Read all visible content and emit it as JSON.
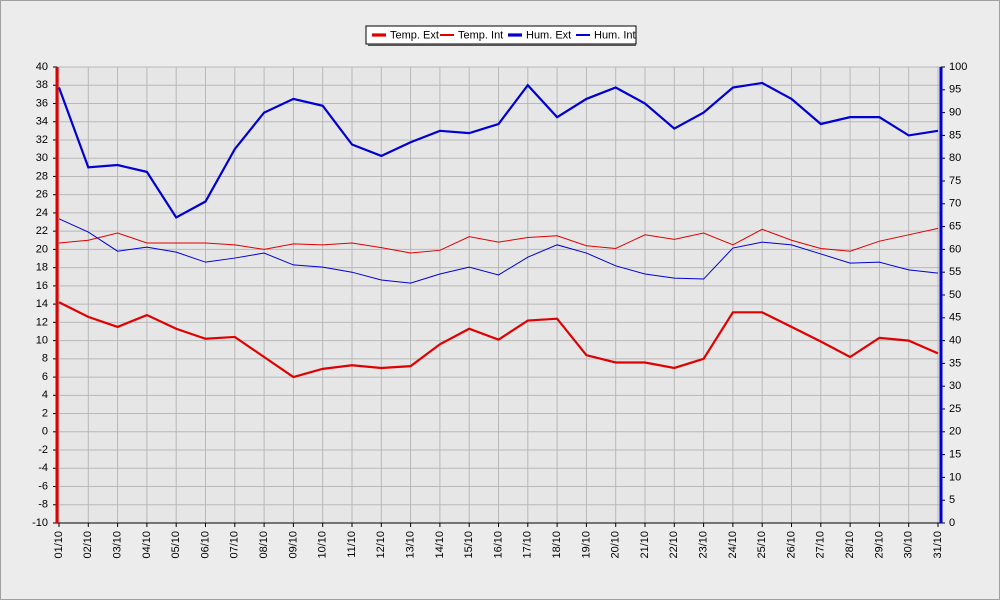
{
  "chart_data": {
    "type": "line",
    "categories": [
      "01/10",
      "02/10",
      "03/10",
      "04/10",
      "05/10",
      "06/10",
      "07/10",
      "08/10",
      "09/10",
      "10/10",
      "11/10",
      "12/10",
      "13/10",
      "14/10",
      "15/10",
      "16/10",
      "17/10",
      "18/10",
      "19/10",
      "20/10",
      "21/10",
      "22/10",
      "23/10",
      "24/10",
      "25/10",
      "26/10",
      "27/10",
      "28/10",
      "29/10",
      "30/10",
      "31/10"
    ],
    "series": [
      {
        "name": "Temp. Ext",
        "color": "#e00000",
        "linewidth": 2.2,
        "values": [
          14.2,
          12.6,
          11.5,
          12.8,
          11.3,
          10.2,
          10.4,
          8.2,
          6.0,
          6.9,
          7.3,
          7.0,
          7.2,
          9.6,
          11.3,
          10.1,
          12.2,
          12.4,
          8.4,
          7.6,
          7.6,
          7.0,
          8.0,
          13.1,
          13.1,
          11.5,
          9.9,
          8.2,
          10.3,
          10.0,
          8.6
        ]
      },
      {
        "name": "Temp. Int",
        "color": "#e00000",
        "linewidth": 1,
        "values": [
          20.7,
          21.0,
          21.8,
          20.7,
          20.7,
          20.7,
          20.5,
          20.0,
          20.6,
          20.5,
          20.7,
          20.2,
          19.6,
          19.9,
          21.4,
          20.8,
          21.3,
          21.5,
          20.4,
          20.1,
          21.6,
          21.1,
          21.8,
          20.5,
          22.2,
          21.0,
          20.1,
          19.8,
          20.9,
          21.6,
          22.3
        ]
      },
      {
        "name": "Hum. Ext",
        "color": "#0000d0",
        "linewidth": 2.2,
        "axis": "y2",
        "values": [
          95.5,
          78,
          78.5,
          77,
          67,
          70.5,
          82,
          90,
          93,
          91.5,
          83,
          80.5,
          83.5,
          86,
          85.5,
          87.5,
          96,
          89,
          93,
          95.5,
          92,
          86.5,
          90,
          95.5,
          96.5,
          93,
          87.5,
          89,
          89,
          85,
          86
        ]
      },
      {
        "name": "Hum. Int",
        "color": "#0000d0",
        "linewidth": 1,
        "axis": "y2",
        "values": [
          66.7,
          63.8,
          59.6,
          60.5,
          59.4,
          57.2,
          58.1,
          59.2,
          56.6,
          56.1,
          55,
          53.3,
          52.6,
          54.6,
          56.1,
          54.4,
          58.3,
          61,
          59.2,
          56.4,
          54.6,
          53.7,
          53.5,
          60.3,
          61.6,
          61,
          59,
          57,
          57.2,
          55.5,
          54.8
        ]
      }
    ],
    "ylim": [
      -10,
      40
    ],
    "yticks": [
      -10,
      -8,
      -6,
      -4,
      -2,
      0,
      2,
      4,
      6,
      8,
      10,
      12,
      14,
      16,
      18,
      20,
      22,
      24,
      26,
      28,
      30,
      32,
      34,
      36,
      38,
      40
    ],
    "y2lim": [
      0,
      100
    ],
    "y2ticks": [
      0,
      5,
      10,
      15,
      20,
      25,
      30,
      35,
      40,
      45,
      50,
      55,
      60,
      65,
      70,
      75,
      80,
      85,
      90,
      95,
      100
    ],
    "y_axis_color": "#e00000",
    "y2_axis_color": "#0000d0",
    "grid": true,
    "legend": "top"
  }
}
